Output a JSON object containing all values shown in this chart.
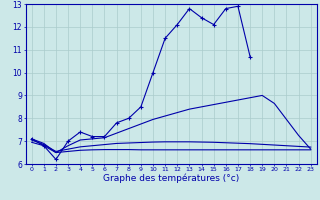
{
  "xlabel": "Graphe des températures (°c)",
  "bg_color": "#cce8e8",
  "grid_color": "#aacccc",
  "line_color": "#0000aa",
  "xlim": [
    -0.5,
    23.5
  ],
  "ylim": [
    6,
    13
  ],
  "x_ticks": [
    0,
    1,
    2,
    3,
    4,
    5,
    6,
    7,
    8,
    9,
    10,
    11,
    12,
    13,
    14,
    15,
    16,
    17,
    18,
    19,
    20,
    21,
    22,
    23
  ],
  "y_ticks": [
    6,
    7,
    8,
    9,
    10,
    11,
    12,
    13
  ],
  "series1_x": [
    0,
    1,
    2,
    3,
    4,
    5,
    6,
    7,
    8,
    9,
    10,
    11,
    12,
    13,
    14,
    15,
    16,
    17,
    18
  ],
  "series1_y": [
    7.1,
    6.8,
    6.2,
    7.0,
    7.4,
    7.2,
    7.2,
    7.8,
    8.0,
    8.5,
    10.0,
    11.5,
    12.1,
    12.8,
    12.4,
    12.1,
    12.8,
    12.9,
    10.7
  ],
  "series2_x": [
    0,
    1,
    2,
    3,
    4,
    5,
    6,
    7,
    8,
    9,
    10,
    11,
    12,
    13,
    14,
    15,
    16,
    17,
    18,
    19,
    20,
    21,
    22,
    23
  ],
  "series2_y": [
    7.1,
    6.9,
    6.5,
    6.8,
    7.05,
    7.1,
    7.15,
    7.35,
    7.55,
    7.75,
    7.95,
    8.1,
    8.25,
    8.4,
    8.5,
    8.6,
    8.7,
    8.8,
    8.9,
    9.0,
    8.65,
    7.95,
    7.25,
    6.65
  ],
  "series3_x": [
    0,
    1,
    2,
    3,
    4,
    5,
    6,
    7,
    8,
    9,
    10,
    11,
    12,
    13,
    14,
    15,
    16,
    17,
    18,
    19,
    20,
    21,
    22,
    23
  ],
  "series3_y": [
    7.05,
    6.85,
    6.55,
    6.65,
    6.75,
    6.8,
    6.85,
    6.9,
    6.92,
    6.94,
    6.96,
    6.97,
    6.97,
    6.97,
    6.96,
    6.95,
    6.93,
    6.91,
    6.89,
    6.86,
    6.83,
    6.8,
    6.77,
    6.74
  ],
  "series4_x": [
    0,
    1,
    2,
    3,
    4,
    5,
    6,
    7,
    8,
    9,
    10,
    11,
    12,
    13,
    14,
    15,
    16,
    17,
    18,
    19,
    20,
    21,
    22,
    23
  ],
  "series4_y": [
    6.95,
    6.8,
    6.5,
    6.55,
    6.6,
    6.62,
    6.63,
    6.63,
    6.63,
    6.62,
    6.62,
    6.62,
    6.62,
    6.62,
    6.62,
    6.62,
    6.62,
    6.62,
    6.62,
    6.62,
    6.62,
    6.62,
    6.62,
    6.62
  ]
}
